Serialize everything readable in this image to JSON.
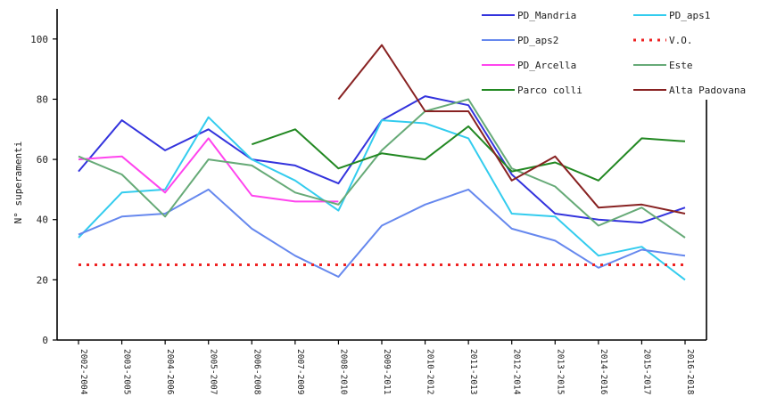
{
  "chart_data": {
    "type": "line",
    "title": "",
    "xlabel": "",
    "ylabel": "N° superamenti",
    "ylim": [
      0,
      110
    ],
    "yticks": [
      0,
      20,
      40,
      60,
      80,
      100
    ],
    "grid": false,
    "legend_position": "top-right",
    "categories": [
      "2002-2004",
      "2003-2005",
      "2004-2006",
      "2005-2007",
      "2006-2008",
      "2007-2009",
      "2008-2010",
      "2009-2011",
      "2010-2012",
      "2011-2013",
      "2012-2014",
      "2013-2015",
      "2014-2016",
      "2015-2017",
      "2016-2018"
    ],
    "series": [
      {
        "name": "PD_Mandria",
        "color": "#3333dd",
        "dash": "",
        "values": [
          56,
          73,
          63,
          70,
          60,
          58,
          52,
          73,
          81,
          78,
          55,
          42,
          40,
          39,
          44
        ]
      },
      {
        "name": "PD_aps1",
        "color": "#33ccee",
        "dash": "",
        "values": [
          34,
          49,
          50,
          74,
          60,
          53,
          43,
          73,
          72,
          67,
          42,
          41,
          28,
          31,
          20
        ]
      },
      {
        "name": "PD_aps2",
        "color": "#6688ee",
        "dash": "",
        "values": [
          35,
          41,
          42,
          50,
          37,
          28,
          21,
          38,
          45,
          50,
          37,
          33,
          24,
          30,
          28
        ]
      },
      {
        "name": "V.O.",
        "color": "#ee2222",
        "dash": "3,6",
        "values": [
          25,
          25,
          25,
          25,
          25,
          25,
          25,
          25,
          25,
          25,
          25,
          25,
          25,
          25,
          25
        ]
      },
      {
        "name": "PD_Arcella",
        "color": "#ff44ee",
        "dash": "",
        "values": [
          60,
          61,
          49,
          67,
          48,
          46,
          46,
          null,
          null,
          null,
          null,
          null,
          null,
          null,
          null
        ]
      },
      {
        "name": "Este",
        "color": "#66aa77",
        "dash": "",
        "values": [
          61,
          55,
          41,
          60,
          58,
          49,
          45,
          63,
          76,
          80,
          57,
          51,
          38,
          44,
          34
        ]
      },
      {
        "name": "Parco colli",
        "color": "#228822",
        "dash": "",
        "values": [
          null,
          null,
          null,
          null,
          65,
          70,
          57,
          62,
          60,
          71,
          56,
          59,
          53,
          67,
          66
        ]
      },
      {
        "name": "Alta Padovana",
        "color": "#882222",
        "dash": "",
        "values": [
          null,
          null,
          null,
          null,
          null,
          null,
          80,
          98,
          76,
          76,
          53,
          61,
          44,
          45,
          42
        ]
      }
    ]
  }
}
